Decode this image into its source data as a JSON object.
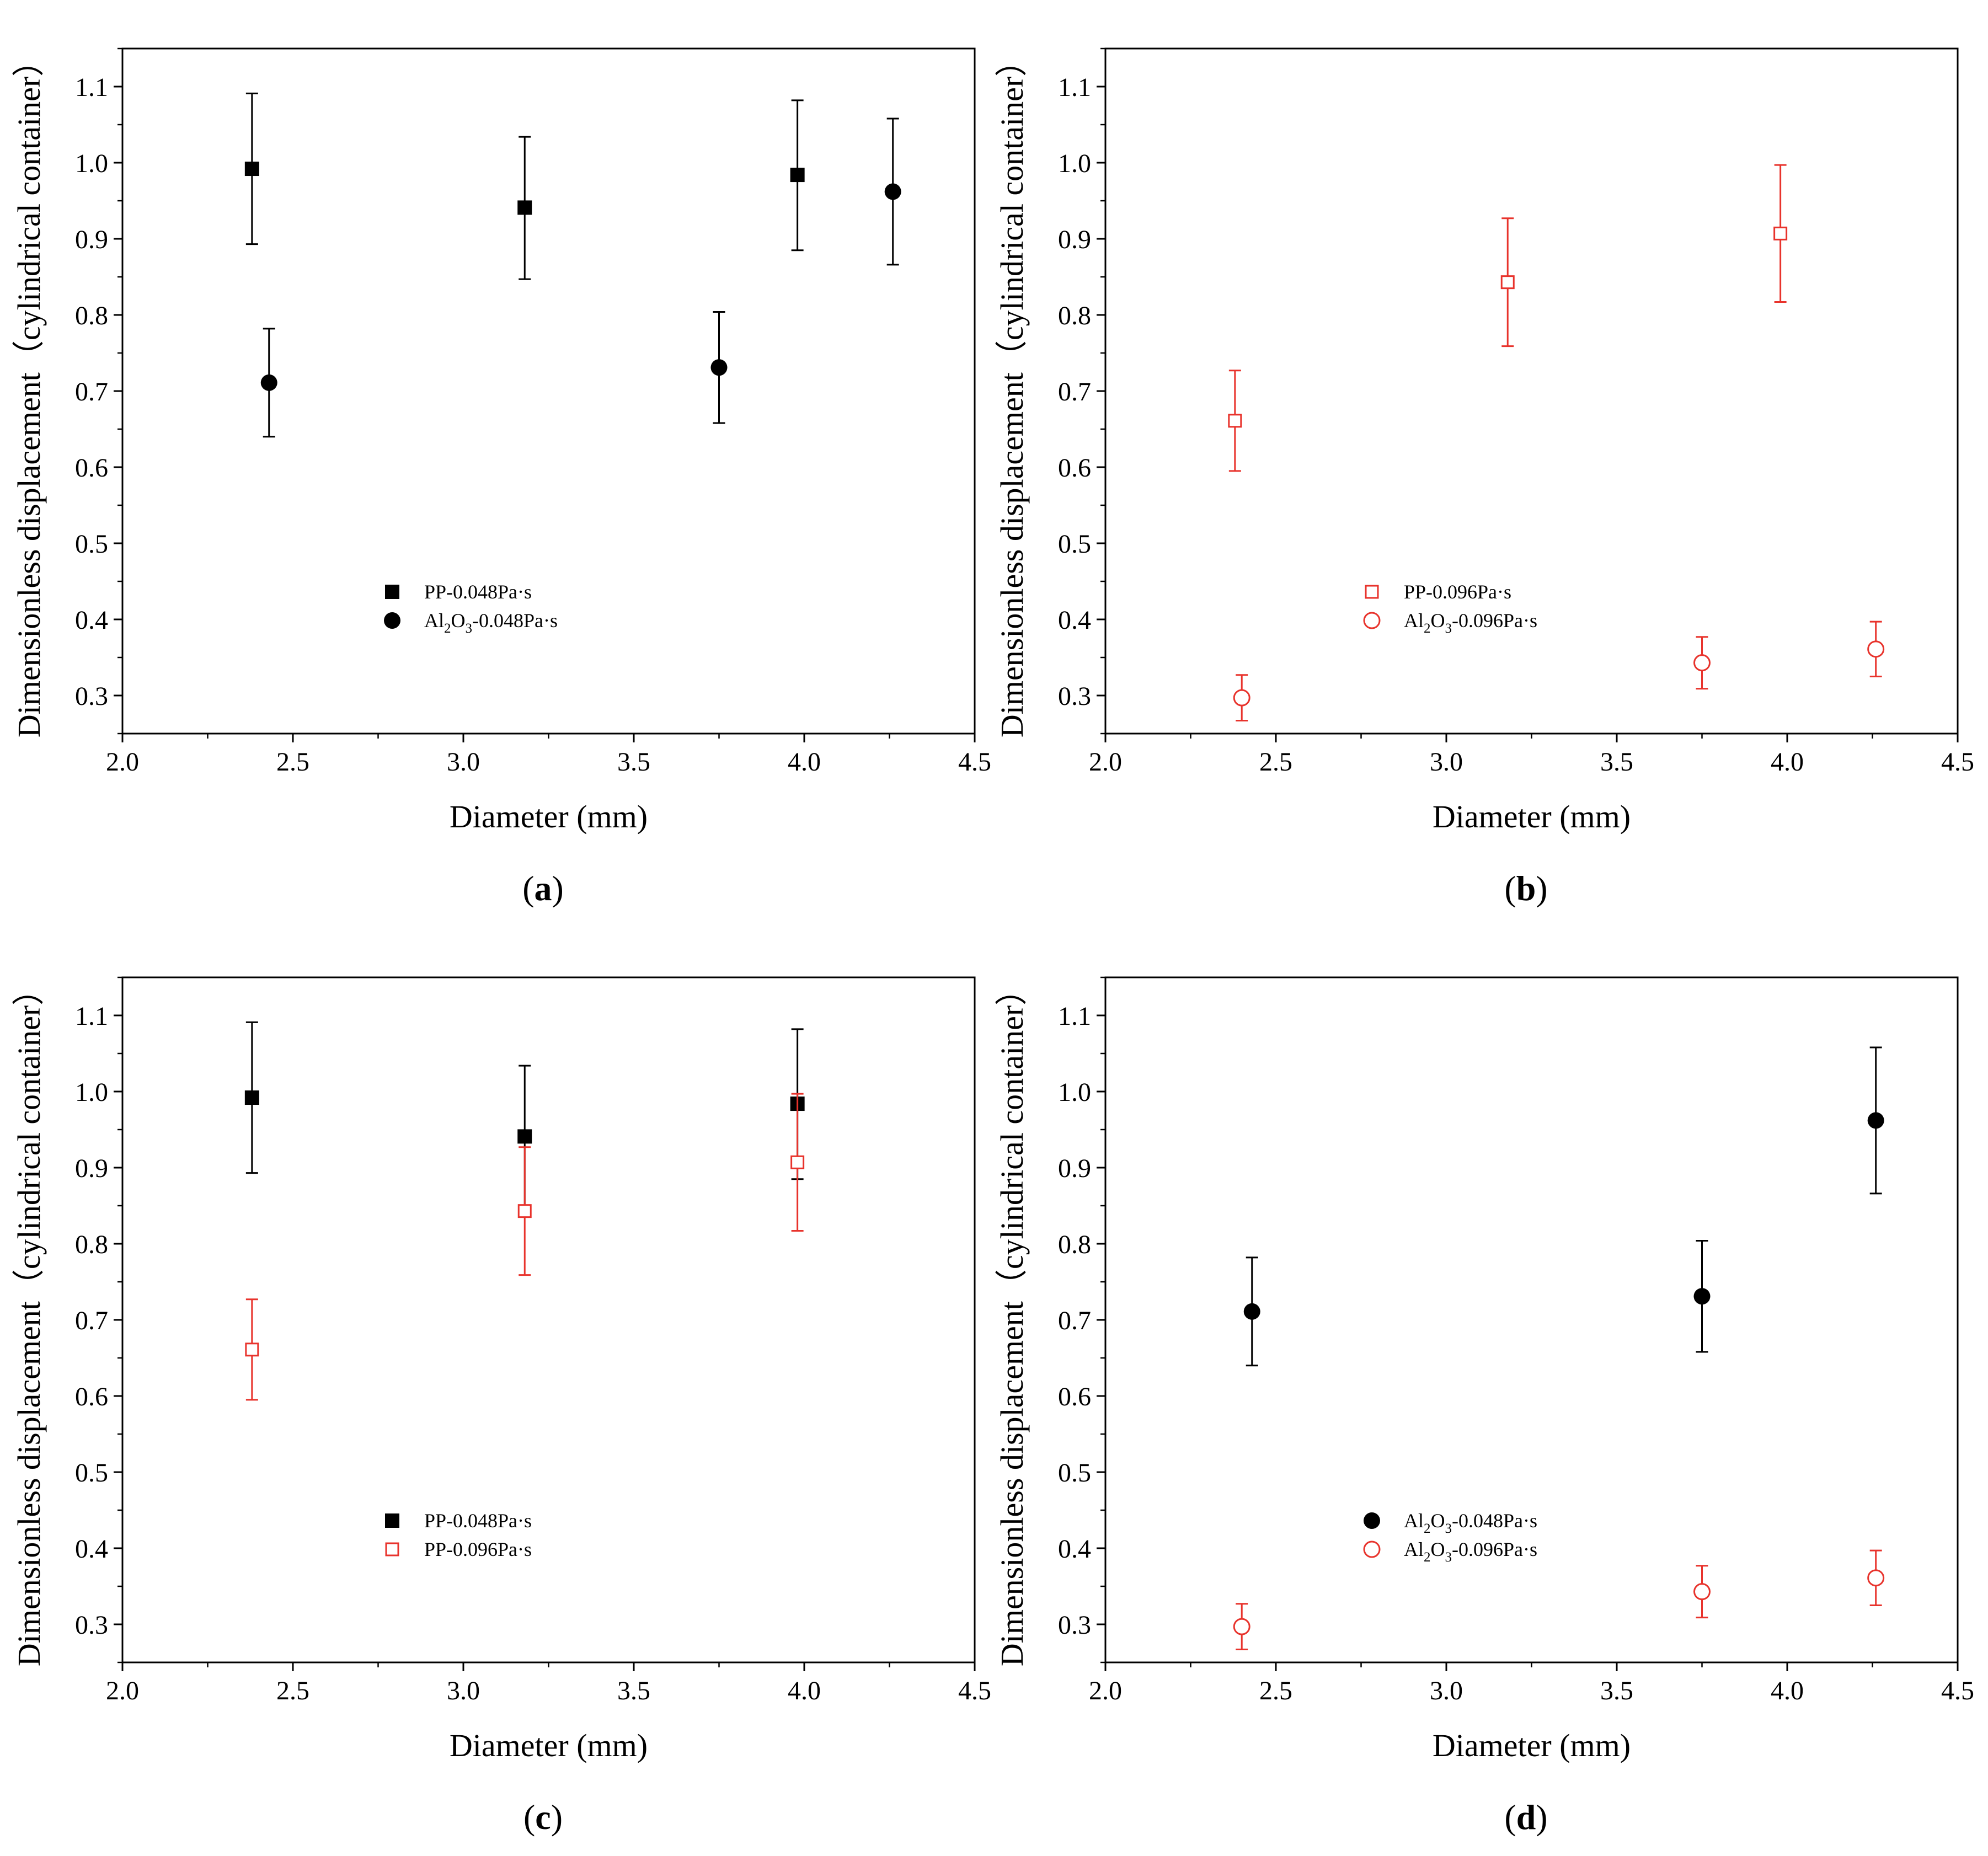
{
  "figure_description": "Four-panel figure",
  "colors": {
    "black": "#000000",
    "red": "#e8332c"
  },
  "chart_data": [
    {
      "type": "scatter",
      "panel": "(a)",
      "panel_letter": "a",
      "xlabel": "Diameter (mm)",
      "ylabel": "Dimensionless displacement（cylindrical container）",
      "xlim": [
        2.0,
        4.5
      ],
      "ylim": [
        0.25,
        1.15
      ],
      "xticks": [
        "2.0",
        "2.5",
        "3.0",
        "3.5",
        "4.0",
        "4.5"
      ],
      "yticks": [
        "0.3",
        "0.4",
        "0.5",
        "0.6",
        "0.7",
        "0.8",
        "0.9",
        "1.0",
        "1.1"
      ],
      "legend_position": "center-left",
      "series": [
        {
          "name": "PP-0.048Pa·s",
          "legend_main": "PP-0.048Pa·s",
          "marker": "square-filled",
          "color": "#000000",
          "x": [
            2.38,
            3.18,
            3.98
          ],
          "y": [
            0.992,
            0.941,
            0.984
          ],
          "err_low": [
            0.893,
            0.847,
            0.885
          ],
          "err_high": [
            1.091,
            1.034,
            1.082
          ]
        },
        {
          "name": "Al2O3-0.048Pa·s",
          "legend_parts": [
            "Al",
            "2",
            "O",
            "3",
            "-0.048Pa·s"
          ],
          "marker": "circle-filled",
          "color": "#000000",
          "x": [
            2.43,
            3.75,
            4.26
          ],
          "y": [
            0.711,
            0.731,
            0.962
          ],
          "err_low": [
            0.64,
            0.658,
            0.866
          ],
          "err_high": [
            0.782,
            0.804,
            1.058
          ]
        }
      ]
    },
    {
      "type": "scatter",
      "panel": "(b)",
      "panel_letter": "b",
      "xlabel": "Diameter (mm)",
      "ylabel": "Dimensionless displacement（cylindrical container）",
      "xlim": [
        2.0,
        4.5
      ],
      "ylim": [
        0.25,
        1.15
      ],
      "xticks": [
        "2.0",
        "2.5",
        "3.0",
        "3.5",
        "4.0",
        "4.5"
      ],
      "yticks": [
        "0.3",
        "0.4",
        "0.5",
        "0.6",
        "0.7",
        "0.8",
        "0.9",
        "1.0",
        "1.1"
      ],
      "legend_position": "center-right",
      "series": [
        {
          "name": "PP-0.096Pa·s",
          "legend_main": "PP-0.096Pa·s",
          "marker": "square-open",
          "color": "#e8332c",
          "x": [
            2.38,
            3.18,
            3.98
          ],
          "y": [
            0.661,
            0.843,
            0.907
          ],
          "err_low": [
            0.595,
            0.759,
            0.817
          ],
          "err_high": [
            0.727,
            0.927,
            0.997
          ]
        },
        {
          "name": "Al2O3-0.096Pa·s",
          "legend_parts": [
            "Al",
            "2",
            "O",
            "3",
            "-0.096Pa·s"
          ],
          "marker": "circle-open",
          "color": "#e8332c",
          "x": [
            2.4,
            3.75,
            4.26
          ],
          "y": [
            0.297,
            0.343,
            0.361
          ],
          "err_low": [
            0.267,
            0.309,
            0.325
          ],
          "err_high": [
            0.327,
            0.377,
            0.397
          ]
        }
      ]
    },
    {
      "type": "scatter",
      "panel": "(c)",
      "panel_letter": "c",
      "xlabel": "Diameter (mm)",
      "ylabel": "Dimensionless displacement（cylindrical container）",
      "xlim": [
        2.0,
        4.5
      ],
      "ylim": [
        0.25,
        1.15
      ],
      "xticks": [
        "2.0",
        "2.5",
        "3.0",
        "3.5",
        "4.0",
        "4.5"
      ],
      "yticks": [
        "0.3",
        "0.4",
        "0.5",
        "0.6",
        "0.7",
        "0.8",
        "0.9",
        "1.0",
        "1.1"
      ],
      "legend_position": "center-left",
      "series": [
        {
          "name": "PP-0.048Pa·s",
          "legend_main": "PP-0.048Pa·s",
          "marker": "square-filled",
          "color": "#000000",
          "x": [
            2.38,
            3.18,
            3.98
          ],
          "y": [
            0.992,
            0.941,
            0.984
          ],
          "err_low": [
            0.893,
            0.847,
            0.885
          ],
          "err_high": [
            1.091,
            1.034,
            1.082
          ]
        },
        {
          "name": "PP-0.096Pa·s",
          "legend_main": "PP-0.096Pa·s",
          "marker": "square-open",
          "color": "#e8332c",
          "x": [
            2.38,
            3.18,
            3.98
          ],
          "y": [
            0.661,
            0.843,
            0.907
          ],
          "err_low": [
            0.595,
            0.759,
            0.817
          ],
          "err_high": [
            0.727,
            0.927,
            0.997
          ]
        }
      ]
    },
    {
      "type": "scatter",
      "panel": "(d)",
      "panel_letter": "d",
      "xlabel": "Diameter (mm)",
      "ylabel": "Dimensionless displacement（cylindrical container）",
      "xlim": [
        2.0,
        4.5
      ],
      "ylim": [
        0.25,
        1.15
      ],
      "xticks": [
        "2.0",
        "2.5",
        "3.0",
        "3.5",
        "4.0",
        "4.5"
      ],
      "yticks": [
        "0.3",
        "0.4",
        "0.5",
        "0.6",
        "0.7",
        "0.8",
        "0.9",
        "1.0",
        "1.1"
      ],
      "legend_position": "center-right",
      "series": [
        {
          "name": "Al2O3-0.048Pa·s",
          "legend_parts": [
            "Al",
            "2",
            "O",
            "3",
            "-0.048Pa·s"
          ],
          "marker": "circle-filled",
          "color": "#000000",
          "x": [
            2.43,
            3.75,
            4.26
          ],
          "y": [
            0.711,
            0.731,
            0.962
          ],
          "err_low": [
            0.64,
            0.658,
            0.866
          ],
          "err_high": [
            0.782,
            0.804,
            1.058
          ]
        },
        {
          "name": "Al2O3-0.096Pa·s",
          "legend_parts": [
            "Al",
            "2",
            "O",
            "3",
            "-0.096Pa·s"
          ],
          "marker": "circle-open",
          "color": "#e8332c",
          "x": [
            2.4,
            3.75,
            4.26
          ],
          "y": [
            0.297,
            0.343,
            0.361
          ],
          "err_low": [
            0.267,
            0.309,
            0.325
          ],
          "err_high": [
            0.327,
            0.377,
            0.397
          ]
        }
      ]
    }
  ]
}
